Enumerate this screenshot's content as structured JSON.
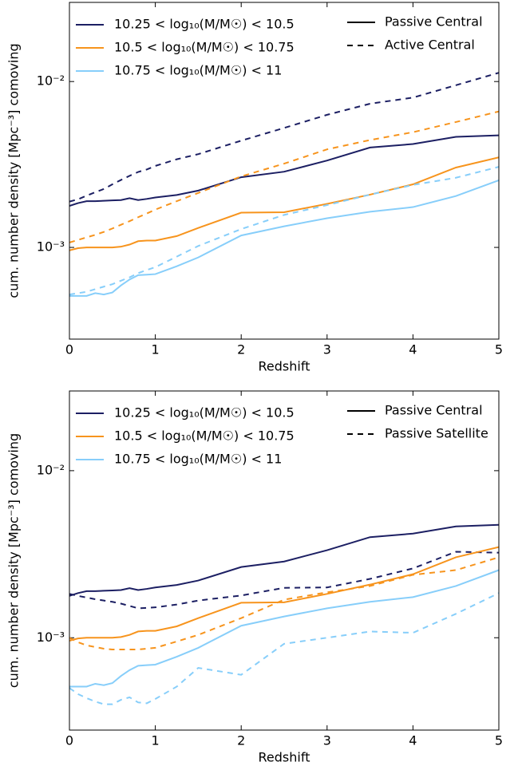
{
  "chart_data": [
    {
      "type": "line",
      "xlabel": "Redshift",
      "ylabel": "cum. number density [Mpc⁻³] comoving",
      "ylog": true,
      "xlim": [
        0,
        5
      ],
      "ylim": [
        0.00028,
        0.03
      ],
      "xticks": [
        0,
        1,
        2,
        3,
        4,
        5
      ],
      "yticks": [
        {
          "value": 0.001,
          "label": "10⁻³"
        },
        {
          "value": 0.01,
          "label": "10⁻²"
        }
      ],
      "x": [
        0,
        0.1,
        0.2,
        0.3,
        0.4,
        0.5,
        0.6,
        0.7,
        0.8,
        0.9,
        1.0,
        1.25,
        1.5,
        2,
        2.5,
        3,
        3.5,
        4,
        4.5,
        5
      ],
      "legend_colors": [
        {
          "name": "10.25 < log₁₀(M/M☉) < 10.5",
          "color": "#1c1f63"
        },
        {
          "name": "10.5 < log₁₀(M/M☉) < 10.75",
          "color": "#f7941d"
        },
        {
          "name": "10.75 < log₁₀(M/M☉) < 11",
          "color": "#87cefa"
        }
      ],
      "legend_styles": [
        {
          "name": "Passive Central",
          "dashed": false
        },
        {
          "name": "Active Central",
          "dashed": true
        }
      ],
      "series": [
        {
          "color": "#1c1f63",
          "dashed": false,
          "values": [
            0.00178,
            0.00185,
            0.0019,
            0.0019,
            0.00191,
            0.00192,
            0.00193,
            0.00198,
            0.00193,
            0.00196,
            0.002,
            0.00207,
            0.0022,
            0.00265,
            0.00286,
            0.00334,
            0.004,
            0.0042,
            0.00464,
            0.00474
          ]
        },
        {
          "color": "#1c1f63",
          "dashed": true,
          "values": [
            0.00189,
            0.00195,
            0.00205,
            0.00215,
            0.00225,
            0.0024,
            0.00255,
            0.0027,
            0.00285,
            0.00295,
            0.0031,
            0.0034,
            0.00365,
            0.0044,
            0.00525,
            0.0063,
            0.00735,
            0.008,
            0.0095,
            0.0113
          ]
        },
        {
          "color": "#f7941d",
          "dashed": false,
          "values": [
            0.00096,
            0.00099,
            0.001,
            0.001,
            0.001,
            0.001,
            0.00101,
            0.00104,
            0.00109,
            0.0011,
            0.0011,
            0.00117,
            0.00131,
            0.00162,
            0.00163,
            0.00183,
            0.00208,
            0.0024,
            0.00303,
            0.00349
          ]
        },
        {
          "color": "#f7941d",
          "dashed": true,
          "values": [
            0.00107,
            0.00111,
            0.00115,
            0.00119,
            0.00124,
            0.0013,
            0.00137,
            0.00144,
            0.00152,
            0.0016,
            0.00169,
            0.0019,
            0.00213,
            0.00268,
            0.0032,
            0.0039,
            0.00444,
            0.00495,
            0.0057,
            0.0066
          ]
        },
        {
          "color": "#87cefa",
          "dashed": false,
          "values": [
            0.00051,
            0.00051,
            0.00051,
            0.00053,
            0.00052,
            0.000535,
            0.00059,
            0.00064,
            0.00068,
            0.000685,
            0.00069,
            0.00077,
            0.00087,
            0.00118,
            0.00134,
            0.0015,
            0.00164,
            0.00175,
            0.00204,
            0.00254
          ]
        },
        {
          "color": "#87cefa",
          "dashed": true,
          "values": [
            0.00052,
            0.00053,
            0.00054,
            0.00056,
            0.00058,
            0.0006,
            0.00063,
            0.00066,
            0.0007,
            0.00073,
            0.00076,
            0.00088,
            0.00102,
            0.00129,
            0.00157,
            0.0018,
            0.00208,
            0.00238,
            0.00263,
            0.00306
          ]
        }
      ]
    },
    {
      "type": "line",
      "xlabel": "Redshift",
      "ylabel": "cum. number density [Mpc⁻³] comoving",
      "ylog": true,
      "xlim": [
        0,
        5
      ],
      "ylim": [
        0.00028,
        0.03
      ],
      "xticks": [
        0,
        1,
        2,
        3,
        4,
        5
      ],
      "yticks": [
        {
          "value": 0.001,
          "label": "10⁻³"
        },
        {
          "value": 0.01,
          "label": "10⁻²"
        }
      ],
      "x": [
        0,
        0.1,
        0.2,
        0.3,
        0.4,
        0.5,
        0.6,
        0.7,
        0.8,
        0.9,
        1.0,
        1.25,
        1.5,
        2,
        2.5,
        3,
        3.5,
        4,
        4.5,
        5
      ],
      "legend_colors": [
        {
          "name": "10.25 < log₁₀(M/M☉) < 10.5",
          "color": "#1c1f63"
        },
        {
          "name": "10.5 < log₁₀(M/M☉) < 10.75",
          "color": "#f7941d"
        },
        {
          "name": "10.75 < log₁₀(M/M☉) < 11",
          "color": "#87cefa"
        }
      ],
      "legend_styles": [
        {
          "name": "Passive Central",
          "dashed": false
        },
        {
          "name": "Passive Satellite",
          "dashed": true
        }
      ],
      "series": [
        {
          "color": "#1c1f63",
          "dashed": false,
          "values": [
            0.00178,
            0.00185,
            0.0019,
            0.0019,
            0.00191,
            0.00192,
            0.00193,
            0.00198,
            0.00193,
            0.00196,
            0.002,
            0.00207,
            0.0022,
            0.00265,
            0.00286,
            0.00334,
            0.004,
            0.0042,
            0.00464,
            0.00474
          ]
        },
        {
          "color": "#1c1f63",
          "dashed": true,
          "values": [
            0.00183,
            0.00178,
            0.00174,
            0.0017,
            0.00167,
            0.00164,
            0.0016,
            0.00155,
            0.0015,
            0.00151,
            0.00152,
            0.00158,
            0.00167,
            0.00179,
            0.00199,
            0.002,
            0.00225,
            0.0026,
            0.00327,
            0.00323
          ]
        },
        {
          "color": "#f7941d",
          "dashed": false,
          "values": [
            0.00096,
            0.00099,
            0.001,
            0.001,
            0.001,
            0.001,
            0.00101,
            0.00104,
            0.00109,
            0.0011,
            0.0011,
            0.00117,
            0.00131,
            0.00162,
            0.00163,
            0.00183,
            0.00208,
            0.0024,
            0.00303,
            0.00349
          ]
        },
        {
          "color": "#f7941d",
          "dashed": true,
          "values": [
            0.001,
            0.00094,
            0.0009,
            0.00088,
            0.00086,
            0.00085,
            0.00085,
            0.00085,
            0.00085,
            0.00086,
            0.00087,
            0.00095,
            0.00104,
            0.00131,
            0.00169,
            0.00187,
            0.00204,
            0.00238,
            0.00254,
            0.00303
          ]
        },
        {
          "color": "#87cefa",
          "dashed": false,
          "values": [
            0.00051,
            0.00051,
            0.00051,
            0.00053,
            0.00052,
            0.000535,
            0.00059,
            0.00064,
            0.00068,
            0.000685,
            0.00069,
            0.00077,
            0.00087,
            0.00118,
            0.00134,
            0.0015,
            0.00164,
            0.00175,
            0.00204,
            0.00254
          ]
        },
        {
          "color": "#87cefa",
          "dashed": true,
          "values": [
            0.0005,
            0.00046,
            0.000435,
            0.000415,
            0.0004,
            0.0004,
            0.000425,
            0.00044,
            0.00041,
            0.000405,
            0.00043,
            0.00051,
            0.00066,
            0.0006,
            0.00092,
            0.001,
            0.00109,
            0.00107,
            0.00139,
            0.00185
          ]
        }
      ]
    }
  ]
}
